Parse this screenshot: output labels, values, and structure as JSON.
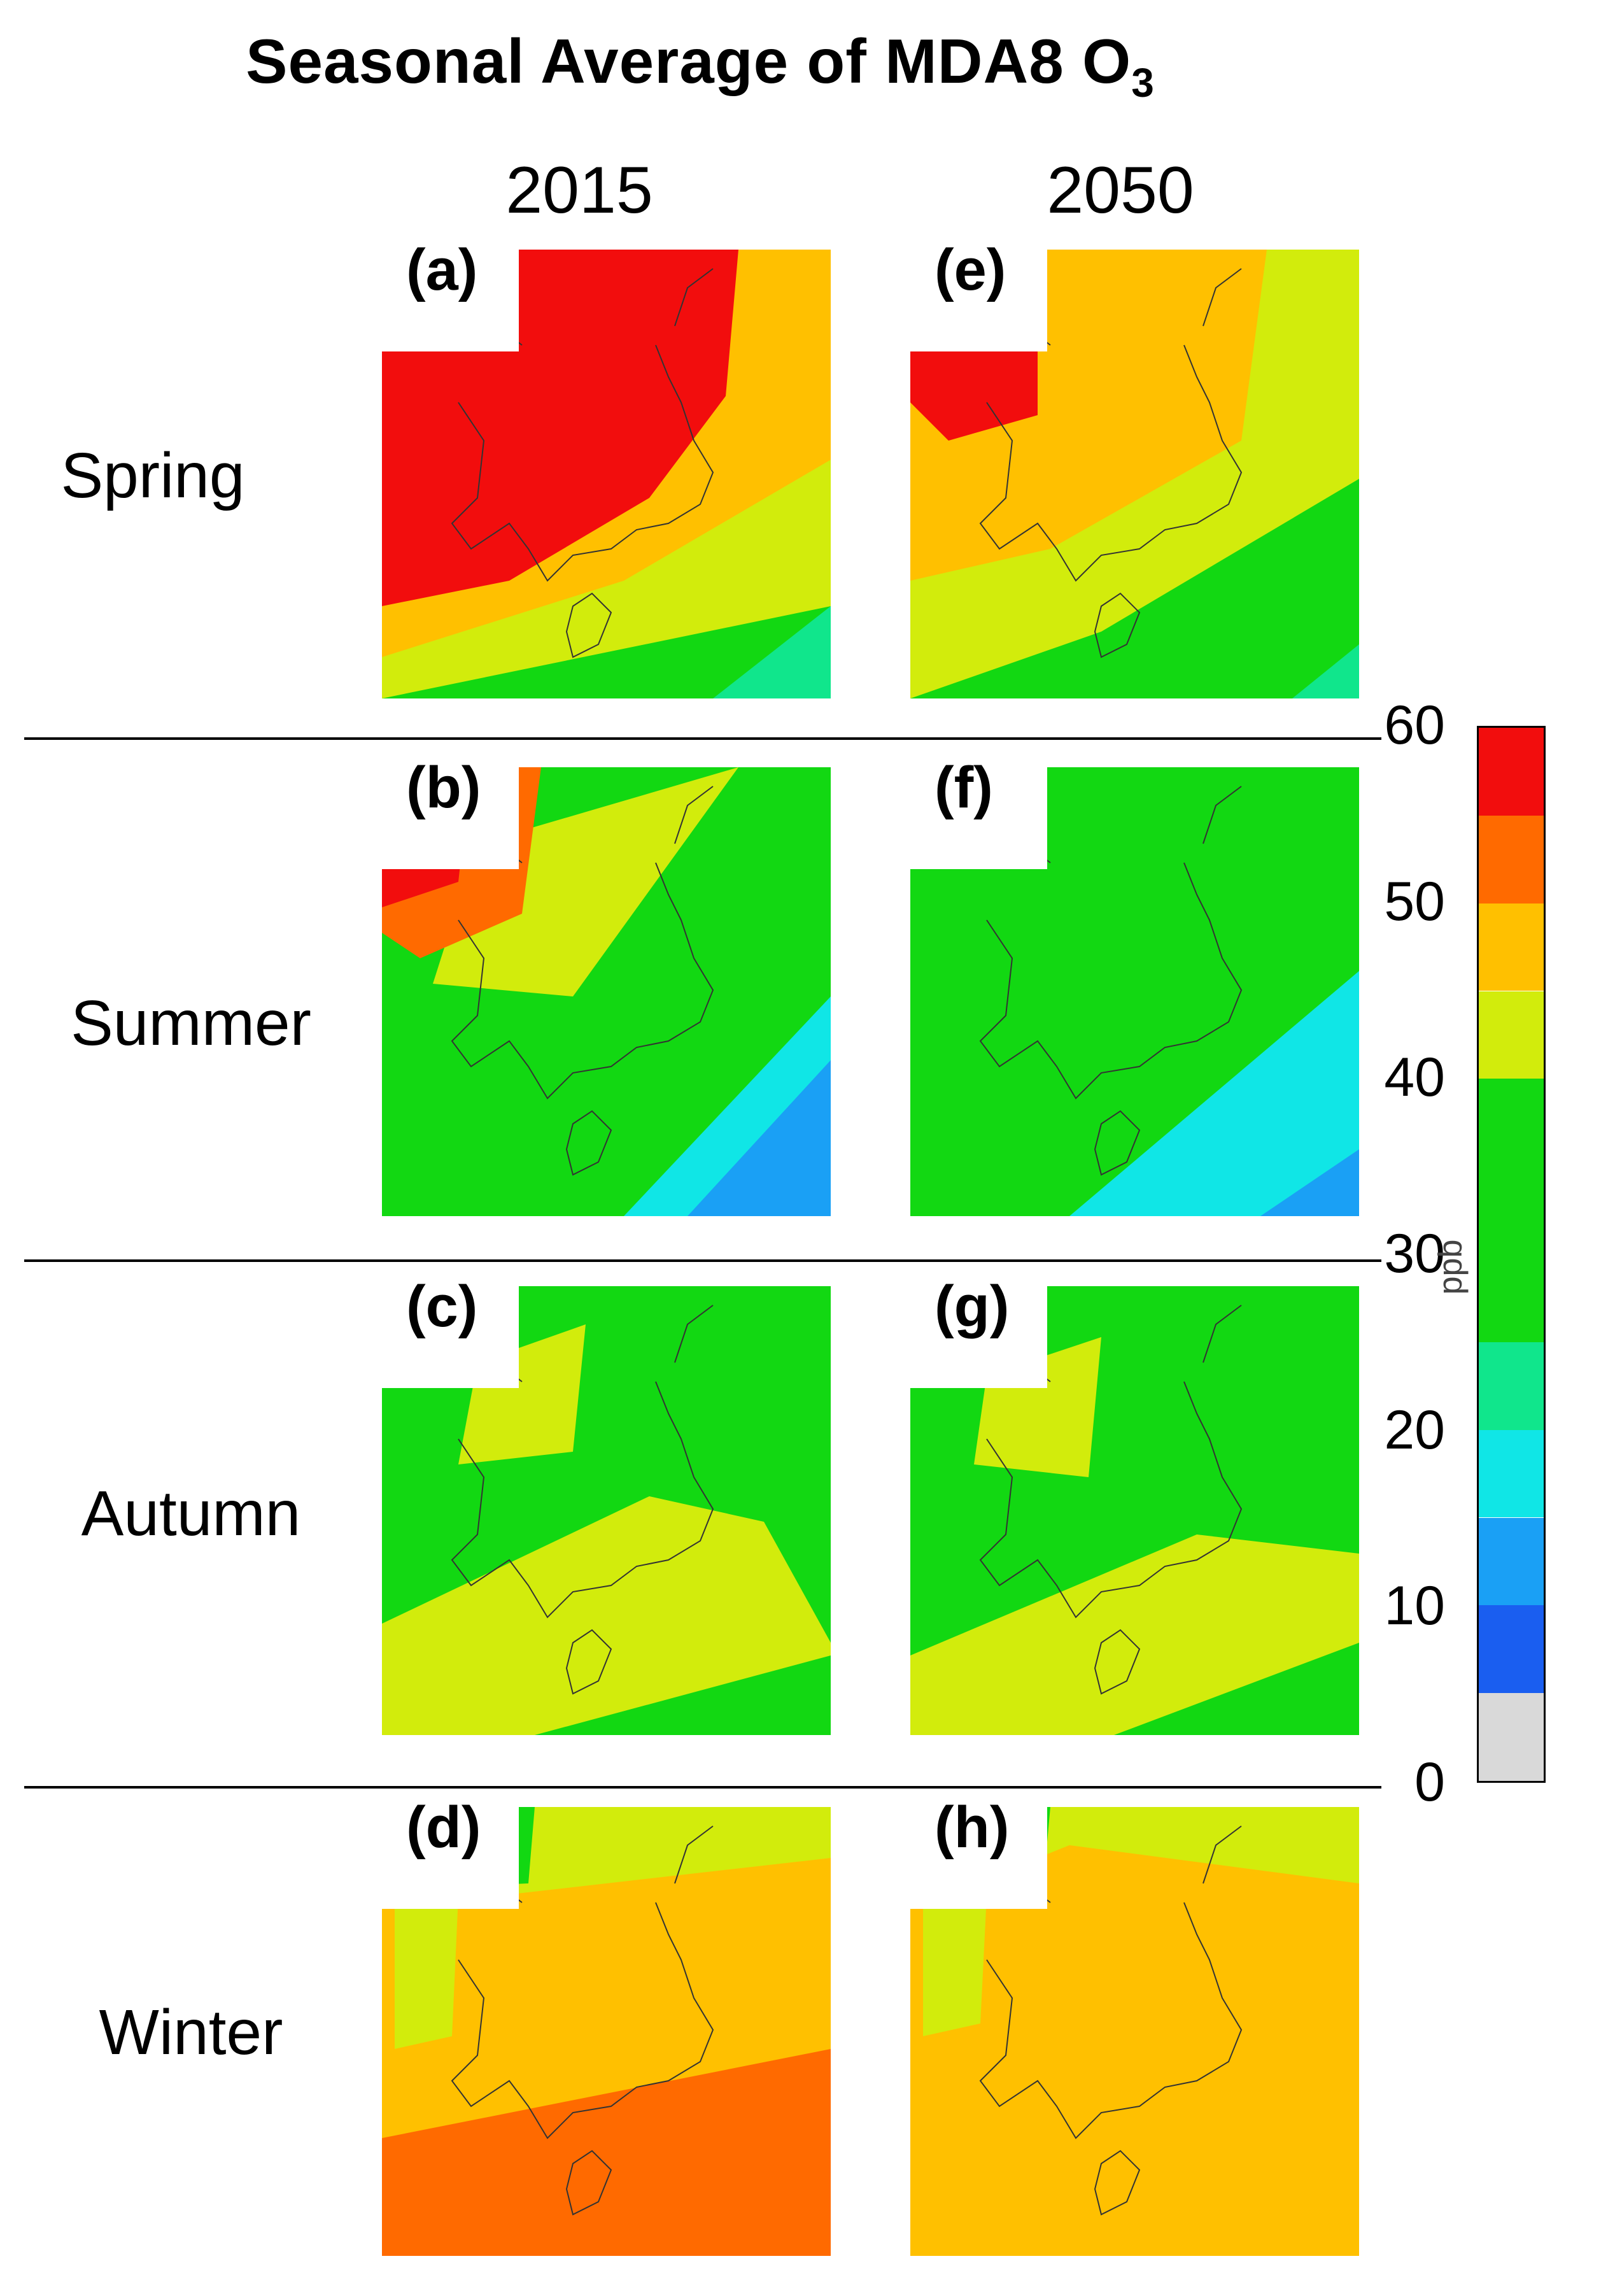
{
  "title_main": "Seasonal Average of MDA8 O",
  "title_sub": "3",
  "years": [
    "2015",
    "2050"
  ],
  "seasons": [
    "Spring",
    "Summer",
    "Autumn",
    "Winter"
  ],
  "panels": [
    {
      "label": "(a)",
      "season": "Spring",
      "year": "2015",
      "scheme": "spring2015"
    },
    {
      "label": "(e)",
      "season": "Spring",
      "year": "2050",
      "scheme": "spring2050"
    },
    {
      "label": "(b)",
      "season": "Summer",
      "year": "2015",
      "scheme": "summer2015"
    },
    {
      "label": "(f)",
      "season": "Summer",
      "year": "2050",
      "scheme": "summer2050"
    },
    {
      "label": "(c)",
      "season": "Autumn",
      "year": "2015",
      "scheme": "autumn2015"
    },
    {
      "label": "(g)",
      "season": "Autumn",
      "year": "2050",
      "scheme": "autumn2050"
    },
    {
      "label": "(d)",
      "season": "Winter",
      "year": "2015",
      "scheme": "winter2015"
    },
    {
      "label": "(h)",
      "season": "Winter",
      "year": "2050",
      "scheme": "winter2050"
    }
  ],
  "colorbar": {
    "unit": "ppb",
    "min": 0,
    "max": 60,
    "tick_labels": [
      "60",
      "50",
      "40",
      "30",
      "20",
      "10",
      "0"
    ],
    "bins": [
      {
        "from": 0,
        "to": 5,
        "color": "#d9d9d9"
      },
      {
        "from": 5,
        "to": 10,
        "color": "#1a5ef0"
      },
      {
        "from": 10,
        "to": 15,
        "color": "#1aa0f5"
      },
      {
        "from": 15,
        "to": 20,
        "color": "#10e6e6"
      },
      {
        "from": 20,
        "to": 25,
        "color": "#10e68c"
      },
      {
        "from": 25,
        "to": 40,
        "color": "#12d812"
      },
      {
        "from": 40,
        "to": 45,
        "color": "#d2ec0c"
      },
      {
        "from": 45,
        "to": 50,
        "color": "#ffc000"
      },
      {
        "from": 50,
        "to": 55,
        "color": "#ff6a00"
      },
      {
        "from": 55,
        "to": 60,
        "color": "#f20d0d"
      }
    ]
  }
}
